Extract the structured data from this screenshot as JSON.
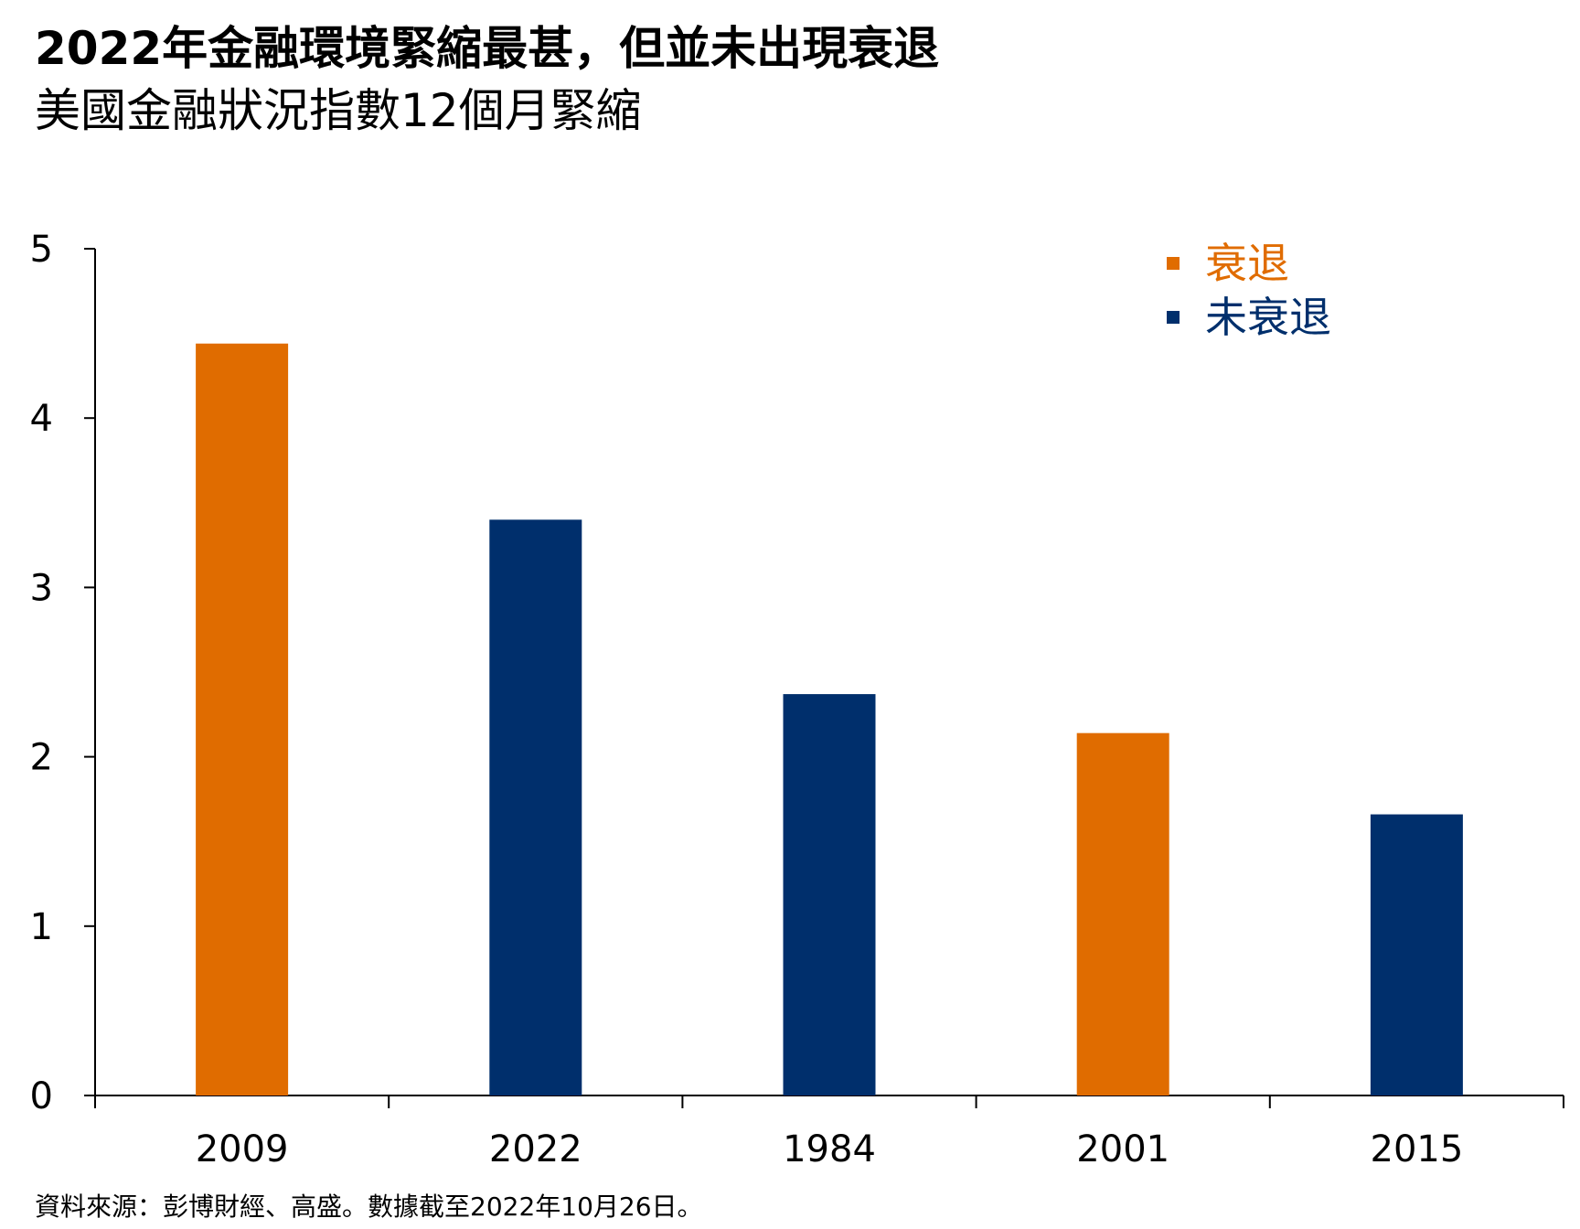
{
  "header": {
    "title": "2022年金融環境緊縮最甚，但並未出現衰退",
    "subtitle": "美國金融狀況指數12個月緊縮"
  },
  "footer": {
    "source": "資料來源：彭博財經、高盛。數據截至2022年10月26日。"
  },
  "colors": {
    "recession": "#E06C00",
    "no_recession": "#002F6C",
    "axis": "#000000"
  },
  "chart_data": {
    "type": "bar",
    "title": "2022年金融環境緊縮最甚，但並未出現衰退",
    "subtitle": "美國金融狀況指數12個月緊縮",
    "categories": [
      "2009",
      "2022",
      "1984",
      "2001",
      "2015"
    ],
    "values": [
      4.44,
      3.4,
      2.37,
      2.14,
      1.66
    ],
    "bar_group": [
      "recession",
      "no_recession",
      "no_recession",
      "recession",
      "no_recession"
    ],
    "legend": [
      {
        "key": "recession",
        "label": "衰退",
        "color": "#E06C00"
      },
      {
        "key": "no_recession",
        "label": "未衰退",
        "color": "#002F6C"
      }
    ],
    "legend_position": "top-right",
    "xlabel": "",
    "ylabel": "",
    "ylim": [
      0,
      5
    ],
    "yticks": [
      "0",
      "1",
      "2",
      "3",
      "4",
      "5"
    ],
    "grid": false
  }
}
